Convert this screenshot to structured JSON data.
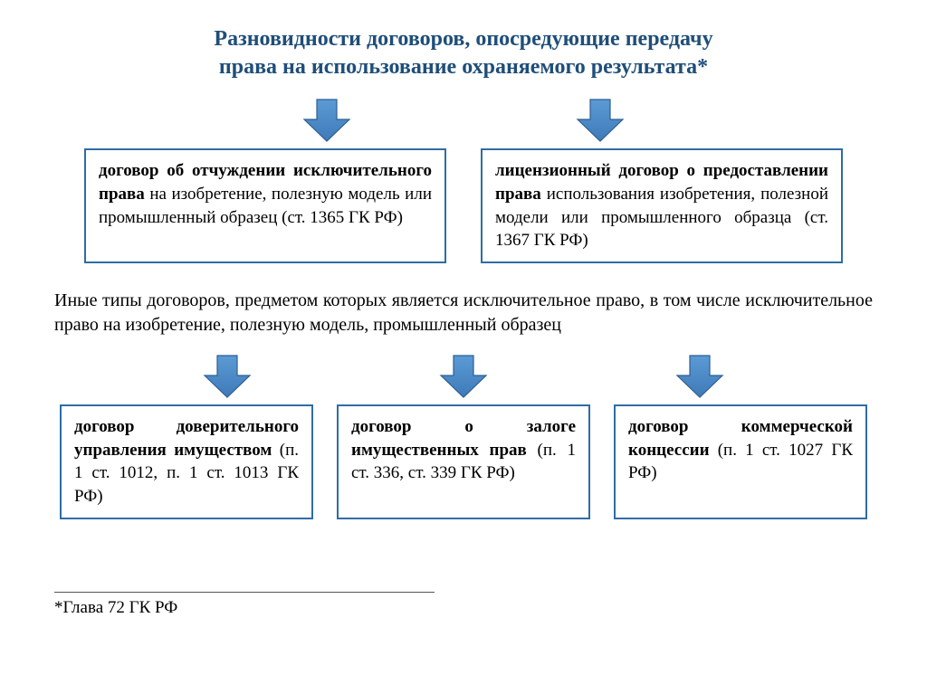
{
  "title_line1": "Разновидности договоров, опосредующие передачу",
  "title_line2": "права на использование охраняемого результата*",
  "arrow": {
    "fill_top": "#5b9bd5",
    "fill_bottom": "#3e7ab8",
    "stroke": "#2e5f91",
    "width": 58,
    "height": 50
  },
  "box_border": "#2e6da4",
  "top_boxes": [
    {
      "bold": "договор об отчуждении исключительного права",
      "rest": " на изобретение, полезную модель или промышленный образец (ст. 1365 ГК РФ)"
    },
    {
      "bold": "лицензионный договор о предоставлении права",
      "rest": " использования изобретения, полезной модели или промышленного образца (ст. 1367 ГК РФ)"
    }
  ],
  "mid_text": "Иные типы договоров, предметом которых является исключительное право, в том числе исключительное право на изобретение, полезную модель, промышленный образец",
  "bottom_boxes": [
    {
      "bold": "договор доверительного управления имуществом",
      "rest": " (п. 1 ст. 1012, п. 1 ст. 1013 ГК РФ)"
    },
    {
      "bold": "договор о залоге имущественных прав",
      "rest": " (п. 1 ст. 336, ст. 339 ГК РФ)"
    },
    {
      "bold": "договор коммерческой концессии",
      "rest": " (п. 1 ст. 1027 ГК РФ)"
    }
  ],
  "footnote": "*Глава 72 ГК РФ"
}
